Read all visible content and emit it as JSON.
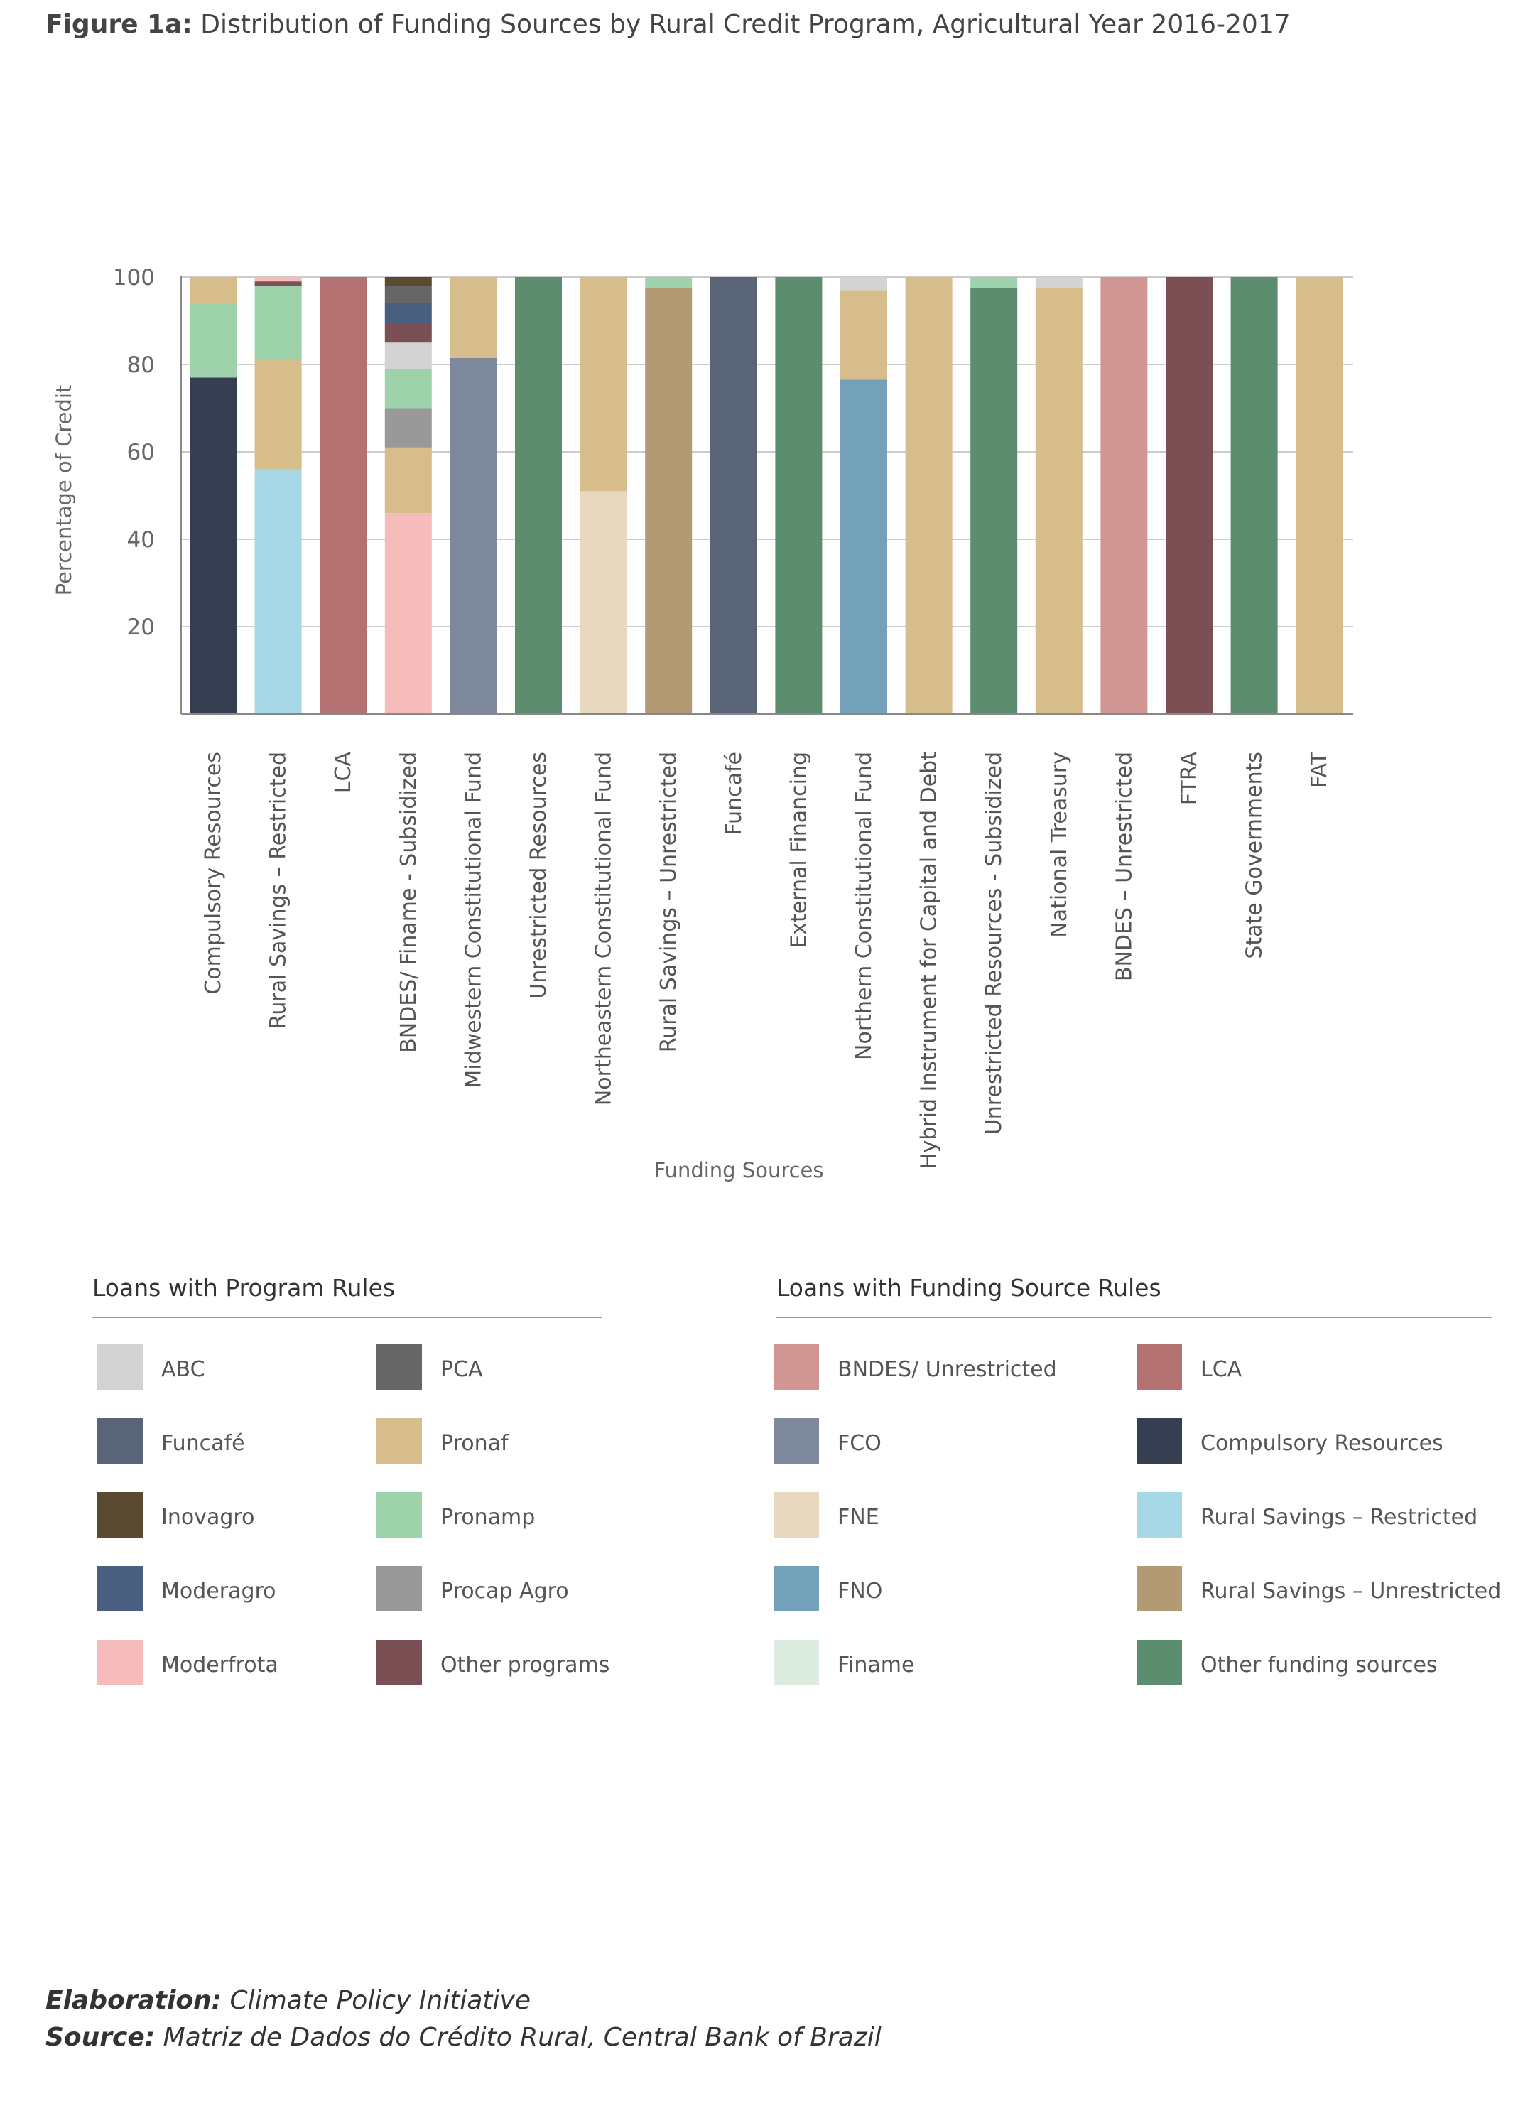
{
  "figure": {
    "label": "Figure 1a:",
    "title": "Distribution of Funding Sources by Rural Credit Program, Agricultural Year 2016-2017"
  },
  "colors": {
    "ABC": "#d3d3d3",
    "PCA": "#666666",
    "Funcafe": "#5a6479",
    "Pronaf": "#d7bc8c",
    "Inovagro": "#5a4a32",
    "Pronamp": "#9ed2ab",
    "Moderagro": "#4a5e80",
    "ProcapAgro": "#999999",
    "Moderfrota": "#f6bcbc",
    "OtherPrograms": "#7a5055",
    "BNDESUnrestricted": "#d19594",
    "LCA": "#b37171",
    "FCO": "#7e889c",
    "CompulsoryResources": "#353f51",
    "FNE": "#e8d8bf",
    "RuralSavingsRestricted": "#a6d8e6",
    "FNO": "#74a1ba",
    "RuralSavingsUnrestricted": "#b29b74",
    "Finame": "#ddece0",
    "OtherFundingSources": "#5c8d6e"
  },
  "chart_data": {
    "type": "bar",
    "stacked": true,
    "xlabel": "Funding Sources",
    "ylabel": "Percentage of Credit",
    "ylim": [
      0,
      100
    ],
    "yticks": [
      20,
      40,
      60,
      80,
      100
    ],
    "grid": true,
    "categories": [
      "Compulsory Resources",
      "Rural Savings – Restricted",
      "LCA",
      "BNDES/ Finame - Subsidized",
      "Midwestern Constitutional Fund",
      "Unrestricted Resources",
      "Northeastern Constitutional Fund",
      "Rural Savings – Unrestricted",
      "Funcafé",
      "External Financing",
      "Northern Constitutional Fund",
      "Hybrid Instrument for Capital and Debt",
      "Unrestricted Resources - Subsidized",
      "National Treasury",
      "BNDES – Unrestricted",
      "FTRA",
      "State Governments",
      "FAT"
    ],
    "stacks": [
      [
        {
          "key": "CompulsoryResources",
          "value": 77
        },
        {
          "key": "Pronamp",
          "value": 17
        },
        {
          "key": "Pronaf",
          "value": 6
        }
      ],
      [
        {
          "key": "RuralSavingsRestricted",
          "value": 56
        },
        {
          "key": "Pronaf",
          "value": 25
        },
        {
          "key": "Pronamp",
          "value": 17
        },
        {
          "key": "OtherPrograms",
          "value": 1
        },
        {
          "key": "Moderfrota",
          "value": 1
        }
      ],
      [
        {
          "key": "LCA",
          "value": 100
        }
      ],
      [
        {
          "key": "Moderfrota",
          "value": 46
        },
        {
          "key": "Pronaf",
          "value": 15
        },
        {
          "key": "ProcapAgro",
          "value": 9
        },
        {
          "key": "Pronamp",
          "value": 9
        },
        {
          "key": "ABC",
          "value": 6
        },
        {
          "key": "OtherPrograms",
          "value": 4.5
        },
        {
          "key": "Moderagro",
          "value": 4.5
        },
        {
          "key": "PCA",
          "value": 4
        },
        {
          "key": "Inovagro",
          "value": 2
        }
      ],
      [
        {
          "key": "FCO",
          "value": 81.5
        },
        {
          "key": "Pronaf",
          "value": 18.5
        }
      ],
      [
        {
          "key": "OtherFundingSources",
          "value": 100
        }
      ],
      [
        {
          "key": "FNE",
          "value": 51
        },
        {
          "key": "Pronaf",
          "value": 49
        }
      ],
      [
        {
          "key": "RuralSavingsUnrestricted",
          "value": 97.5
        },
        {
          "key": "Pronamp",
          "value": 2.5
        }
      ],
      [
        {
          "key": "Funcafe",
          "value": 100
        }
      ],
      [
        {
          "key": "OtherFundingSources",
          "value": 100
        }
      ],
      [
        {
          "key": "FNO",
          "value": 76.5
        },
        {
          "key": "Pronaf",
          "value": 20.5
        },
        {
          "key": "ABC",
          "value": 3
        }
      ],
      [
        {
          "key": "Pronaf",
          "value": 100
        }
      ],
      [
        {
          "key": "OtherFundingSources",
          "value": 97.5
        },
        {
          "key": "Pronamp",
          "value": 2.5
        }
      ],
      [
        {
          "key": "Pronaf",
          "value": 97.5
        },
        {
          "key": "ABC",
          "value": 2.5
        }
      ],
      [
        {
          "key": "BNDESUnrestricted",
          "value": 100
        }
      ],
      [
        {
          "key": "OtherPrograms",
          "value": 100
        }
      ],
      [
        {
          "key": "OtherFundingSources",
          "value": 100
        }
      ],
      [
        {
          "key": "Pronaf",
          "value": 100
        }
      ]
    ]
  },
  "legend_program": {
    "title": "Loans with Program Rules",
    "items": [
      {
        "label": "ABC",
        "key": "ABC"
      },
      {
        "label": "Funcafé",
        "key": "Funcafe"
      },
      {
        "label": "Inovagro",
        "key": "Inovagro"
      },
      {
        "label": "Moderagro",
        "key": "Moderagro"
      },
      {
        "label": "Moderfrota",
        "key": "Moderfrota"
      },
      {
        "label": "PCA",
        "key": "PCA"
      },
      {
        "label": "Pronaf",
        "key": "Pronaf"
      },
      {
        "label": "Pronamp",
        "key": "Pronamp"
      },
      {
        "label": "Procap Agro",
        "key": "ProcapAgro"
      },
      {
        "label": "Other programs",
        "key": "OtherPrograms"
      }
    ]
  },
  "legend_funding": {
    "title": "Loans with Funding Source Rules",
    "items": [
      {
        "label": "BNDES/ Unrestricted",
        "key": "BNDESUnrestricted"
      },
      {
        "label": "FCO",
        "key": "FCO"
      },
      {
        "label": "FNE",
        "key": "FNE"
      },
      {
        "label": "FNO",
        "key": "FNO"
      },
      {
        "label": "Finame",
        "key": "Finame"
      },
      {
        "label": "LCA",
        "key": "LCA"
      },
      {
        "label": "Compulsory Resources",
        "key": "CompulsoryResources"
      },
      {
        "label": "Rural Savings – Restricted",
        "key": "RuralSavingsRestricted"
      },
      {
        "label": "Rural Savings – Unrestricted",
        "key": "RuralSavingsUnrestricted"
      },
      {
        "label": "Other funding sources",
        "key": "OtherFundingSources"
      }
    ]
  },
  "footer": {
    "elaboration_label": "Elaboration:",
    "elaboration": "Climate Policy Initiative",
    "source_label": "Source:",
    "source": "Matriz de Dados do Crédito Rural, Central Bank of Brazil"
  }
}
